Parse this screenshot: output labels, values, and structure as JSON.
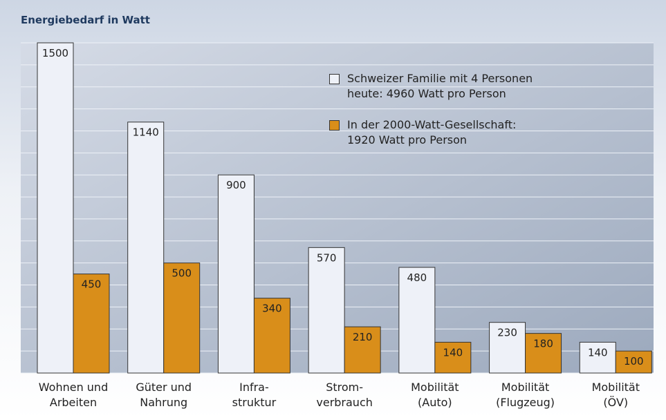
{
  "chart_data": {
    "type": "bar",
    "title": "Energiebedarf in Watt",
    "categories": [
      "Wohnen und\nArbeiten",
      "Güter und\nNahrung",
      "Infra-\nstruktur",
      "Strom-\nverbrauch",
      "Mobilität\n(Auto)",
      "Mobilität\n(Flugzeug)",
      "Mobilität\n(ÖV)"
    ],
    "series": [
      {
        "name": "Schweizer Familie mit 4 Personen\nheute: 4960 Watt pro Person",
        "color": "#eef1f8",
        "values": [
          1500,
          1140,
          900,
          570,
          480,
          230,
          140
        ]
      },
      {
        "name": "In der 2000-Watt-Gesellschaft:\n1920 Watt pro Person",
        "color": "#d98e1a",
        "values": [
          450,
          500,
          340,
          210,
          140,
          180,
          100
        ]
      }
    ],
    "ylim": [
      0,
      1500
    ],
    "yticks": [
      0,
      100,
      200,
      300,
      400,
      500,
      600,
      700,
      800,
      900,
      1000,
      1100,
      1200,
      1300,
      1400,
      1500
    ],
    "tick_labels": false,
    "grid": true,
    "legend": "top-right"
  }
}
